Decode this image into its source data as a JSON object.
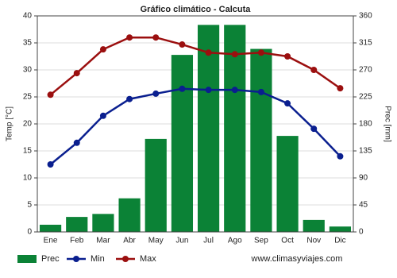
{
  "chart_data": {
    "type": "bar",
    "title": "Gráfico climático - Calcuta",
    "categories": [
      "Ene",
      "Feb",
      "Mar",
      "Abr",
      "May",
      "Jun",
      "Jul",
      "Ago",
      "Sep",
      "Oct",
      "Nov",
      "Dic"
    ],
    "series": [
      {
        "name": "Prec",
        "type": "bar",
        "axis": "y2",
        "color": "#0b8236",
        "values": [
          12,
          25,
          30,
          56,
          155,
          295,
          345,
          345,
          305,
          160,
          20,
          9
        ]
      },
      {
        "name": "Min",
        "type": "line",
        "color": "#0a1f8f",
        "values": [
          12.5,
          16.5,
          21.5,
          24.6,
          25.6,
          26.5,
          26.3,
          26.3,
          25.9,
          23.8,
          19.1,
          14
        ]
      },
      {
        "name": "Max",
        "type": "line",
        "color": "#9b0f0f",
        "values": [
          25.4,
          29.4,
          33.8,
          36,
          36,
          34.7,
          33.2,
          32.9,
          33.2,
          32.5,
          30,
          26.6
        ]
      }
    ],
    "ylabel": "Temp [°C]",
    "y2label": "Prec [mm]",
    "ylim": [
      0,
      40
    ],
    "yticks": [
      0,
      5,
      10,
      15,
      20,
      25,
      30,
      35,
      40
    ],
    "y2lim": [
      0,
      360
    ],
    "y2ticks": [
      0,
      45,
      90,
      135,
      180,
      225,
      270,
      315,
      360
    ],
    "grid": true,
    "legend": "bottom",
    "source": "www.climasyviajes.com"
  }
}
